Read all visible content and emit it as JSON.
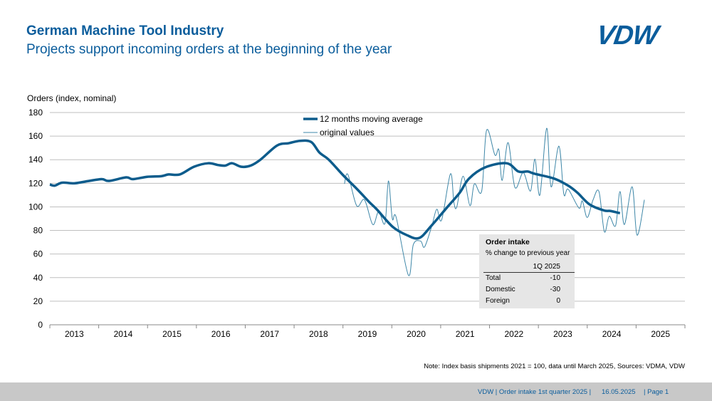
{
  "header": {
    "title": "German Machine Tool Industry",
    "subtitle": "Projects support incoming orders at the beginning of the year",
    "logo": "VDW"
  },
  "colors": {
    "brand": "#0b5d9c",
    "series": "#0d5c8c",
    "thin": "#3e87a8",
    "grid": "#bfbfbf",
    "footer_bg": "#c8c8c8",
    "table_bg": "#e6e6e6"
  },
  "chart_data": {
    "type": "line",
    "title": "",
    "ylabel": "Orders (index, nominal)",
    "xlabel": "",
    "ylim": [
      0,
      180
    ],
    "yticks": [
      0,
      20,
      40,
      60,
      80,
      100,
      120,
      140,
      160,
      180
    ],
    "xlim": [
      2013,
      2026
    ],
    "xtick_labels": [
      "2013",
      "2014",
      "2015",
      "2016",
      "2017",
      "2018",
      "2019",
      "2020",
      "2021",
      "2022",
      "2023",
      "2024",
      "2025"
    ],
    "grid": true,
    "legend_placement": "top-center",
    "series": [
      {
        "name": "12 months moving average",
        "points": [
          [
            2013.0,
            119
          ],
          [
            2013.1,
            118
          ],
          [
            2013.25,
            120.5
          ],
          [
            2013.5,
            120
          ],
          [
            2013.73,
            121.5
          ],
          [
            2014.06,
            123.5
          ],
          [
            2014.21,
            122
          ],
          [
            2014.56,
            125
          ],
          [
            2014.7,
            123.5
          ],
          [
            2014.99,
            125.5
          ],
          [
            2015.28,
            126
          ],
          [
            2015.43,
            127.5
          ],
          [
            2015.66,
            127.5
          ],
          [
            2015.95,
            134
          ],
          [
            2016.24,
            137
          ],
          [
            2016.44,
            135.5
          ],
          [
            2016.59,
            135
          ],
          [
            2016.73,
            137
          ],
          [
            2016.92,
            134
          ],
          [
            2017.11,
            135
          ],
          [
            2017.31,
            140
          ],
          [
            2017.65,
            152
          ],
          [
            2017.89,
            154
          ],
          [
            2018.12,
            156
          ],
          [
            2018.35,
            155
          ],
          [
            2018.52,
            146
          ],
          [
            2018.71,
            140
          ],
          [
            2019.0,
            127
          ],
          [
            2019.29,
            115
          ],
          [
            2019.54,
            104
          ],
          [
            2019.69,
            98
          ],
          [
            2020.02,
            83
          ],
          [
            2020.31,
            76
          ],
          [
            2020.56,
            73.6
          ],
          [
            2020.81,
            84
          ],
          [
            2021.14,
            100
          ],
          [
            2021.39,
            112
          ],
          [
            2021.58,
            124
          ],
          [
            2021.91,
            133.5
          ],
          [
            2022.35,
            137
          ],
          [
            2022.59,
            130
          ],
          [
            2022.78,
            130
          ],
          [
            2022.93,
            128
          ],
          [
            2023.32,
            124
          ],
          [
            2023.61,
            118
          ],
          [
            2023.8,
            112
          ],
          [
            2024.05,
            102
          ],
          [
            2024.34,
            97
          ],
          [
            2024.48,
            96.5
          ],
          [
            2024.67,
            94.6
          ]
        ]
      },
      {
        "name": "original values",
        "points": [
          [
            2019.03,
            119.5
          ],
          [
            2019.1,
            127.5
          ],
          [
            2019.28,
            101
          ],
          [
            2019.44,
            106
          ],
          [
            2019.61,
            85
          ],
          [
            2019.73,
            96
          ],
          [
            2019.86,
            86
          ],
          [
            2019.93,
            122
          ],
          [
            2020.01,
            90
          ],
          [
            2020.09,
            91
          ],
          [
            2020.34,
            42
          ],
          [
            2020.44,
            68
          ],
          [
            2020.59,
            71
          ],
          [
            2020.67,
            66
          ],
          [
            2020.82,
            84
          ],
          [
            2020.92,
            98
          ],
          [
            2021.02,
            89
          ],
          [
            2021.2,
            128
          ],
          [
            2021.27,
            104
          ],
          [
            2021.33,
            100
          ],
          [
            2021.46,
            126
          ],
          [
            2021.6,
            101
          ],
          [
            2021.69,
            119.5
          ],
          [
            2021.84,
            113.5
          ],
          [
            2021.94,
            165
          ],
          [
            2022.11,
            144
          ],
          [
            2022.19,
            148.5
          ],
          [
            2022.26,
            122.5
          ],
          [
            2022.38,
            154.5
          ],
          [
            2022.52,
            116.5
          ],
          [
            2022.69,
            129
          ],
          [
            2022.84,
            113.5
          ],
          [
            2022.93,
            140.5
          ],
          [
            2023.03,
            110
          ],
          [
            2023.17,
            166.7
          ],
          [
            2023.26,
            117
          ],
          [
            2023.42,
            151.5
          ],
          [
            2023.52,
            111
          ],
          [
            2023.61,
            115
          ],
          [
            2023.83,
            99
          ],
          [
            2023.9,
            105
          ],
          [
            2024.0,
            91
          ],
          [
            2024.12,
            106
          ],
          [
            2024.24,
            113
          ],
          [
            2024.35,
            79
          ],
          [
            2024.45,
            92
          ],
          [
            2024.58,
            84
          ],
          [
            2024.67,
            113
          ],
          [
            2024.76,
            85
          ],
          [
            2024.92,
            117
          ],
          [
            2025.02,
            76
          ],
          [
            2025.17,
            106
          ]
        ]
      }
    ]
  },
  "table": {
    "title": "Order intake",
    "subtitle": "% change to previous year",
    "column": "1Q 2025",
    "rows": [
      {
        "label": "Total",
        "value": "-10"
      },
      {
        "label": "Domestic",
        "value": "-30"
      },
      {
        "label": "Foreign",
        "value": "0"
      }
    ]
  },
  "note": "Note: Index basis shipments 2021 = 100, data until March 2025, Sources: VDMA, VDW",
  "footer": {
    "org": "VDW  |  Order intake 1st quarter 2025  |",
    "date": "16.05.2025",
    "page": "|  Page 1"
  }
}
